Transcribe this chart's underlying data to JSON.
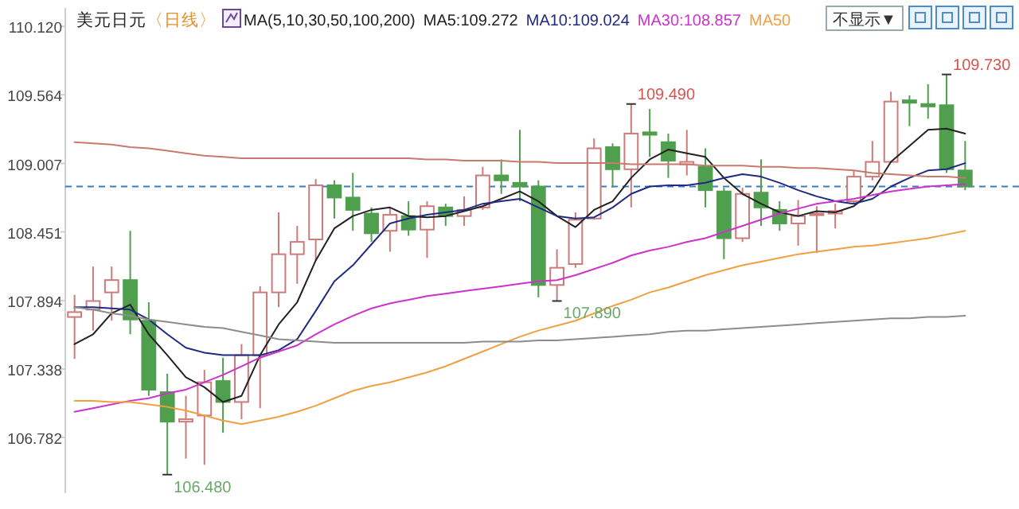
{
  "chart_data": {
    "type": "candlestick",
    "title": "美元日元",
    "subtitle": "〈日线〉",
    "legend_title": "MA(5,10,30,50,100,200)",
    "legend": "top",
    "tick_labels": "y",
    "categories": [
      null,
      null,
      null,
      null,
      null,
      null,
      null,
      null,
      null,
      null,
      null,
      null,
      null,
      null,
      null,
      null,
      null,
      null,
      null,
      null,
      null,
      null,
      null,
      null,
      null,
      null,
      null,
      null,
      null,
      null,
      null,
      null,
      null,
      null,
      null,
      null,
      null,
      null,
      null,
      null,
      null,
      null,
      null,
      null,
      null,
      null,
      null,
      null,
      null
    ],
    "ylim": [
      106.33,
      110.27
    ],
    "yticks": [
      106.782,
      107.338,
      107.894,
      108.451,
      109.007,
      109.564,
      {
        "value": 110.12,
        "label": "110.120"
      }
    ],
    "ohlc": [
      [
        107.76,
        107.94,
        107.42,
        107.8
      ],
      [
        107.82,
        108.17,
        107.65,
        107.89
      ],
      [
        107.96,
        108.17,
        107.73,
        108.06
      ],
      [
        108.06,
        108.46,
        107.62,
        107.74
      ],
      [
        107.73,
        107.88,
        107.12,
        107.17
      ],
      [
        107.15,
        107.3,
        106.48,
        106.91
      ],
      [
        106.91,
        107.12,
        106.61,
        106.93
      ],
      [
        106.96,
        107.33,
        106.56,
        107.23
      ],
      [
        107.24,
        107.43,
        106.82,
        107.07
      ],
      [
        107.07,
        107.54,
        106.93,
        107.45
      ],
      [
        107.45,
        108.01,
        107.02,
        107.96
      ],
      [
        107.96,
        108.61,
        107.84,
        108.27
      ],
      [
        108.27,
        108.5,
        108.03,
        108.37
      ],
      [
        108.39,
        108.88,
        108.22,
        108.83
      ],
      [
        108.83,
        108.87,
        108.56,
        108.73
      ],
      [
        108.73,
        108.93,
        108.46,
        108.63
      ],
      [
        108.6,
        108.65,
        108.37,
        108.44
      ],
      [
        108.46,
        108.65,
        108.29,
        108.59
      ],
      [
        108.58,
        108.7,
        108.42,
        108.47
      ],
      [
        108.47,
        108.7,
        108.24,
        108.66
      ],
      [
        108.65,
        108.68,
        108.5,
        108.58
      ],
      [
        108.58,
        108.74,
        108.5,
        108.63
      ],
      [
        108.65,
        108.98,
        108.63,
        108.91
      ],
      [
        108.91,
        109.04,
        108.76,
        108.87
      ],
      [
        108.85,
        109.28,
        108.7,
        108.82
      ],
      [
        108.82,
        108.87,
        107.92,
        108.02
      ],
      [
        108.02,
        108.31,
        107.89,
        108.16
      ],
      [
        108.19,
        108.61,
        108.16,
        108.55
      ],
      [
        108.56,
        109.21,
        108.55,
        109.13
      ],
      [
        109.14,
        109.17,
        108.81,
        108.96
      ],
      [
        108.96,
        109.49,
        108.65,
        109.25
      ],
      [
        109.26,
        109.45,
        109.06,
        109.24
      ],
      [
        109.18,
        109.25,
        108.89,
        109.03
      ],
      [
        109.0,
        109.28,
        108.91,
        109.02
      ],
      [
        108.98,
        109.13,
        108.65,
        108.79
      ],
      [
        108.78,
        108.81,
        108.23,
        108.4
      ],
      [
        108.4,
        108.81,
        108.37,
        108.76
      ],
      [
        108.77,
        109.04,
        108.5,
        108.65
      ],
      [
        108.63,
        108.7,
        108.46,
        108.52
      ],
      [
        108.52,
        108.71,
        108.34,
        108.58
      ],
      [
        108.59,
        108.66,
        108.28,
        108.6
      ],
      [
        108.6,
        108.68,
        108.48,
        108.62
      ],
      [
        108.7,
        108.95,
        108.68,
        108.9
      ],
      [
        108.9,
        109.19,
        108.87,
        109.02
      ],
      [
        109.02,
        109.59,
        109.01,
        109.51
      ],
      [
        109.52,
        109.56,
        109.31,
        109.5
      ],
      [
        109.49,
        109.65,
        109.37,
        109.47
      ],
      [
        109.48,
        109.73,
        108.93,
        108.96
      ],
      [
        108.95,
        109.19,
        108.79,
        108.82
      ]
    ],
    "colors": [
      "#cc7a7a",
      "#cc7a7a",
      "#cc7a7a",
      "#4f9f4f",
      "#4f9f4f",
      "#4f9f4f",
      "#cc7a7a",
      "#cc7a7a",
      "#4f9f4f",
      "#cc7a7a",
      "#cc7a7a",
      "#cc7a7a",
      "#cc7a7a",
      "#cc7a7a",
      "#4f9f4f",
      "#4f9f4f",
      "#4f9f4f",
      "#cc7a7a",
      "#4f9f4f",
      "#cc7a7a",
      "#4f9f4f",
      "#cc7a7a",
      "#cc7a7a",
      "#4f9f4f",
      "#4f9f4f",
      "#4f9f4f",
      "#cc7a7a",
      "#cc7a7a",
      "#cc7a7a",
      "#4f9f4f",
      "#cc7a7a",
      "#4f9f4f",
      "#4f9f4f",
      "#cc7a7a",
      "#4f9f4f",
      "#4f9f4f",
      "#cc7a7a",
      "#4f9f4f",
      "#4f9f4f",
      "#cc7a7a",
      "#cc7a7a",
      "#cc7a7a",
      "#cc7a7a",
      "#cc7a7a",
      "#cc7a7a",
      "#4f9f4f",
      "#4f9f4f",
      "#4f9f4f",
      "#4f9f4f"
    ],
    "series": [
      {
        "type": "line",
        "name": "MA5:109.272",
        "color": "#222222",
        "values": [
          107.54,
          107.62,
          107.79,
          107.86,
          107.62,
          107.45,
          107.27,
          107.19,
          107.07,
          107.12,
          107.45,
          107.7,
          107.88,
          108.22,
          108.48,
          108.58,
          108.63,
          108.65,
          108.58,
          108.57,
          108.58,
          108.62,
          108.66,
          108.72,
          108.78,
          108.7,
          108.58,
          108.49,
          108.63,
          108.7,
          108.89,
          109.04,
          109.12,
          109.09,
          109.06,
          108.89,
          108.76,
          108.68,
          108.61,
          108.58,
          108.62,
          108.61,
          108.66,
          108.78,
          109.02,
          109.15,
          109.28,
          109.29,
          109.25
        ]
      },
      {
        "type": "line",
        "name": "MA10:109.024",
        "color": "#1f2a80",
        "values": [
          107.84,
          107.84,
          107.83,
          107.82,
          107.74,
          107.62,
          107.51,
          107.47,
          107.45,
          107.45,
          107.45,
          107.49,
          107.58,
          107.81,
          108.05,
          108.18,
          108.35,
          108.52,
          108.56,
          108.59,
          108.61,
          108.63,
          108.68,
          108.7,
          108.72,
          108.65,
          108.58,
          108.56,
          108.57,
          108.65,
          108.76,
          108.82,
          108.83,
          108.83,
          108.85,
          108.89,
          108.92,
          108.9,
          108.85,
          108.79,
          108.74,
          108.7,
          108.68,
          108.72,
          108.82,
          108.89,
          108.95,
          108.96,
          109.01
        ]
      },
      {
        "type": "line",
        "name": "MA30:108.857",
        "color": "#cc33cc",
        "values": [
          106.99,
          107.02,
          107.05,
          107.08,
          107.1,
          107.14,
          107.17,
          107.23,
          107.29,
          107.36,
          107.43,
          107.48,
          107.53,
          107.62,
          107.7,
          107.77,
          107.83,
          107.87,
          107.9,
          107.93,
          107.95,
          107.97,
          107.99,
          108.01,
          108.03,
          108.05,
          108.06,
          108.1,
          108.15,
          108.2,
          108.26,
          108.3,
          108.33,
          108.37,
          108.4,
          108.45,
          108.5,
          108.55,
          108.6,
          108.64,
          108.68,
          108.7,
          108.72,
          108.75,
          108.78,
          108.8,
          108.82,
          108.83,
          108.84
        ]
      },
      {
        "type": "line",
        "name": "MA50",
        "color": "#f0a040",
        "values": [
          107.08,
          107.08,
          107.07,
          107.07,
          107.05,
          107.03,
          107.0,
          106.96,
          106.92,
          106.89,
          106.92,
          106.95,
          106.99,
          107.04,
          107.1,
          107.16,
          107.2,
          107.23,
          107.27,
          107.31,
          107.36,
          107.42,
          107.48,
          107.54,
          107.6,
          107.65,
          107.69,
          107.73,
          107.79,
          107.85,
          107.9,
          107.96,
          108.0,
          108.05,
          108.1,
          108.14,
          108.18,
          108.21,
          108.24,
          108.27,
          108.29,
          108.31,
          108.33,
          108.34,
          108.36,
          108.38,
          108.4,
          108.43,
          108.46
        ]
      },
      {
        "type": "line",
        "color": "#8c8c8c",
        "values": [
          107.84,
          107.82,
          107.79,
          107.77,
          107.74,
          107.72,
          107.7,
          107.68,
          107.67,
          107.64,
          107.61,
          107.58,
          107.57,
          107.56,
          107.55,
          107.55,
          107.55,
          107.55,
          107.55,
          107.55,
          107.55,
          107.55,
          107.56,
          107.56,
          107.56,
          107.57,
          107.57,
          107.58,
          107.59,
          107.6,
          107.61,
          107.62,
          107.64,
          107.65,
          107.65,
          107.66,
          107.67,
          107.68,
          107.69,
          107.7,
          107.71,
          107.72,
          107.73,
          107.74,
          107.75,
          107.75,
          107.76,
          107.76,
          107.77
        ]
      },
      {
        "type": "line",
        "color": "#c87a6e",
        "values": [
          109.18,
          109.17,
          109.16,
          109.14,
          109.13,
          109.11,
          109.09,
          109.07,
          109.06,
          109.05,
          109.05,
          109.05,
          109.05,
          109.05,
          109.05,
          109.05,
          109.05,
          109.05,
          109.05,
          109.04,
          109.04,
          109.03,
          109.03,
          109.03,
          109.02,
          109.02,
          109.01,
          109.01,
          109.01,
          109.01,
          109.0,
          109.0,
          109.0,
          109.0,
          108.99,
          108.99,
          108.99,
          108.98,
          108.98,
          108.97,
          108.97,
          108.96,
          108.95,
          108.93,
          108.92,
          108.91,
          108.9,
          108.9,
          108.89
        ]
      }
    ],
    "ref_lines": [
      {
        "axis": "y",
        "value": 108.82,
        "color": "#3b7dc4",
        "line_style": "dashed"
      }
    ],
    "annotations": [
      "109.730",
      "109.490",
      "107.890",
      "106.480",
      "不显示▼"
    ]
  }
}
